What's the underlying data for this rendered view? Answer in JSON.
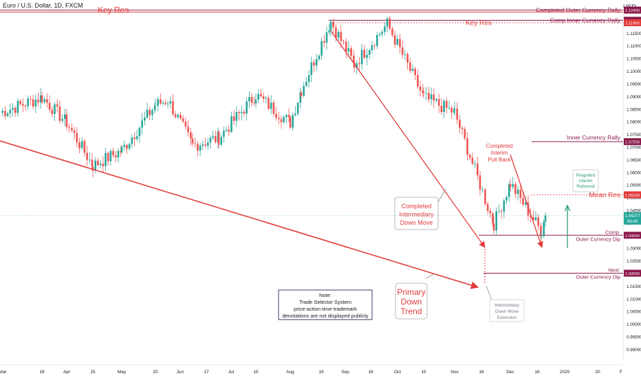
{
  "chart_data": {
    "type": "candlestick",
    "title": "Euro / U.S. Dollar, 1D, FXCM",
    "currency": "USD",
    "ylim": [
      0.989,
      1.1255
    ],
    "y_ticks": [
      "1.12500",
      "1.12000",
      "1.11500",
      "1.11000",
      "1.10500",
      "1.10000",
      "1.09500",
      "1.09000",
      "1.08500",
      "1.08000",
      "1.07500",
      "1.07000",
      "1.06500",
      "1.06000",
      "1.05500",
      "1.05000",
      "1.04500",
      "1.04000",
      "1.03500",
      "1.03000",
      "1.02500",
      "1.02000",
      "1.01500",
      "1.01000",
      "1.00500",
      "1.00000",
      "0.99500",
      "0.99000"
    ],
    "x_ticks": [
      "Mar",
      "18",
      "Apr",
      "15",
      "May",
      "20",
      "Jun",
      "17",
      "Jul",
      "15",
      "Aug",
      "19",
      "Sep",
      "16",
      "Oct",
      "15",
      "Nov",
      "18",
      "Dec",
      "16",
      "2025",
      "20",
      "F"
    ],
    "current_price": "1.04277",
    "countdown": "06:40",
    "price_levels": [
      {
        "id": "completed-outer-rally",
        "value": 1.124,
        "price": "1.12400",
        "label": "Completed Outer Currency Rally",
        "color": "#8b1a4a"
      },
      {
        "id": "key-res-left",
        "value": 1.1232,
        "label": "Key Res",
        "color": "#e23b3b"
      },
      {
        "id": "comp-inner-rally",
        "value": 1.12,
        "price": "1.12000",
        "label": "Comp Inner Currency Rally",
        "color": "#8b1a4a"
      },
      {
        "id": "key-res",
        "value": 1.119,
        "price": "1.11900",
        "label": "Key Res",
        "color": "#e23b3b"
      },
      {
        "id": "inner-rally",
        "value": 1.072,
        "price": "1.07200",
        "label": "Inner Currency Rally",
        "color": "#8b1a4a"
      },
      {
        "id": "mean-res",
        "value": 1.051,
        "price": "1.05100",
        "label": "Mean Res",
        "color": "#e23b3b"
      },
      {
        "id": "comp-outer-dip",
        "value": 1.035,
        "price": "1.03500",
        "label_lines": [
          "Comp",
          "Outer Currency Dip"
        ],
        "color": "#8b1a4a"
      },
      {
        "id": "next-outer-dip",
        "value": 1.02,
        "price": "1.02000",
        "label_lines": [
          "Next",
          "Outer Currency Dip"
        ],
        "color": "#8b1a4a"
      }
    ],
    "callouts": {
      "intermediary": [
        "Completed",
        "Intermediary",
        "Down Move"
      ],
      "interim": [
        "Completed",
        "Interim",
        "Pull Back"
      ],
      "rebound": [
        "Reignited",
        "Interim",
        "Rebound"
      ],
      "primary": [
        "Primary",
        "Down",
        "Trend"
      ],
      "extension": [
        "Intermediary",
        "Down Move",
        "Extension"
      ],
      "note": [
        "Note:",
        "Trade Selector System",
        "price-action-time-trademark",
        "denotations are not displayed publicly"
      ]
    },
    "anchors": [
      {
        "id": "mar1",
        "date": "Mar 1",
        "value": 1.0835
      },
      {
        "id": "mar18",
        "date": "Mar 18",
        "value": 1.0895
      },
      {
        "id": "apr1",
        "date": "Apr 1",
        "value": 1.0795
      },
      {
        "id": "apr15",
        "date": "Apr 15",
        "value": 1.0625
      },
      {
        "id": "may1",
        "date": "May 1",
        "value": 1.0685
      },
      {
        "id": "may20",
        "date": "May 20",
        "value": 1.0865
      },
      {
        "id": "jun3",
        "date": "Jun 3",
        "value": 1.0885
      },
      {
        "id": "jun17",
        "date": "Jun 17",
        "value": 1.0705
      },
      {
        "id": "jul1",
        "date": "Jul 1",
        "value": 1.0735
      },
      {
        "id": "jul15",
        "date": "Jul 15",
        "value": 1.0905
      },
      {
        "id": "aug1",
        "date": "Aug 1",
        "value": 1.0795
      },
      {
        "id": "aug8",
        "date": "Aug 8",
        "value": 1.0925
      },
      {
        "id": "aug26",
        "date": "Aug 26",
        "value": 1.1195
      },
      {
        "id": "sep10",
        "date": "Sep 10",
        "value": 1.1025
      },
      {
        "id": "sep25",
        "date": "Sep 25",
        "value": 1.1185
      },
      {
        "id": "oct15",
        "date": "Oct 15",
        "value": 1.0895
      },
      {
        "id": "oct31",
        "date": "Oct 31",
        "value": 1.0835
      },
      {
        "id": "nov22",
        "date": "Nov 22",
        "value": 1.0395
      },
      {
        "id": "dec1",
        "date": "Dec 1",
        "value": 1.0555
      },
      {
        "id": "dec18",
        "date": "Dec 18",
        "value": 1.0365
      },
      {
        "id": "dec20",
        "date": "Dec 20",
        "value": 1.0428
      }
    ]
  }
}
